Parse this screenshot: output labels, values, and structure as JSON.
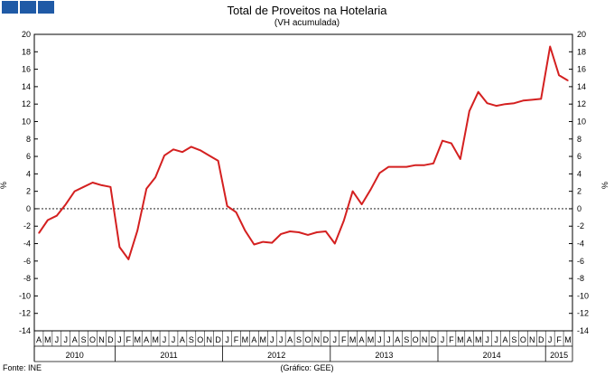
{
  "header": {
    "title": "Total de Proveitos na Hotelaria",
    "subtitle": "(VH acumulada)"
  },
  "footer": {
    "source": "Fonte: INE",
    "credit": "(Gráfico: GEE)"
  },
  "colors": {
    "logo": "#1f5aa6",
    "line": "#d42020"
  },
  "chart_data": {
    "type": "line",
    "title": "Total de Proveitos na Hotelaria",
    "subtitle": "(VH acumulada)",
    "ylabel_left": "%",
    "ylabel_right": "%",
    "ylim": [
      -14,
      20
    ],
    "yticks": [
      20,
      18,
      16,
      14,
      12,
      10,
      8,
      6,
      4,
      2,
      0,
      -2,
      -4,
      -6,
      -8,
      -10,
      -12,
      -14
    ],
    "grid": false,
    "month_labels": [
      "A",
      "M",
      "J",
      "J",
      "A",
      "S",
      "O",
      "N",
      "D",
      "J",
      "F",
      "M",
      "A",
      "M",
      "J",
      "J",
      "A",
      "S",
      "O",
      "N",
      "D",
      "J",
      "F",
      "M",
      "A",
      "M",
      "J",
      "J",
      "A",
      "S",
      "O",
      "N",
      "D",
      "J",
      "F",
      "M",
      "A",
      "M",
      "J",
      "J",
      "A",
      "S",
      "O",
      "N",
      "D",
      "J",
      "F",
      "M",
      "A",
      "M",
      "J",
      "J",
      "A",
      "S",
      "O",
      "N",
      "D",
      "J",
      "F",
      "M"
    ],
    "year_labels": [
      {
        "label": "2010",
        "start": 0,
        "end": 8
      },
      {
        "label": "2011",
        "start": 9,
        "end": 20
      },
      {
        "label": "2012",
        "start": 21,
        "end": 32
      },
      {
        "label": "2013",
        "start": 33,
        "end": 44
      },
      {
        "label": "2014",
        "start": 45,
        "end": 56
      },
      {
        "label": "2015",
        "start": 57,
        "end": 59
      }
    ],
    "series": [
      {
        "values": [
          -2.8,
          -1.3,
          -0.8,
          0.5,
          2.0,
          2.5,
          3.0,
          2.7,
          2.5,
          -4.4,
          -5.8,
          -2.5,
          2.3,
          3.6,
          6.1,
          6.8,
          6.5,
          7.1,
          6.7,
          6.1,
          5.5,
          0.3,
          -0.4,
          -2.5,
          -4.1,
          -3.8,
          -3.9,
          -2.9,
          -2.6,
          -2.7,
          -3.0,
          -2.7,
          -2.6,
          -4.0,
          -1.4,
          2.0,
          0.5,
          2.2,
          4.1,
          4.8,
          4.8,
          4.8,
          5.0,
          5.0,
          5.2,
          7.8,
          7.5,
          5.7,
          11.2,
          13.4,
          12.1,
          11.8,
          12.0,
          12.1,
          12.4,
          12.5,
          12.6,
          18.6,
          15.3,
          14.7
        ]
      }
    ]
  }
}
